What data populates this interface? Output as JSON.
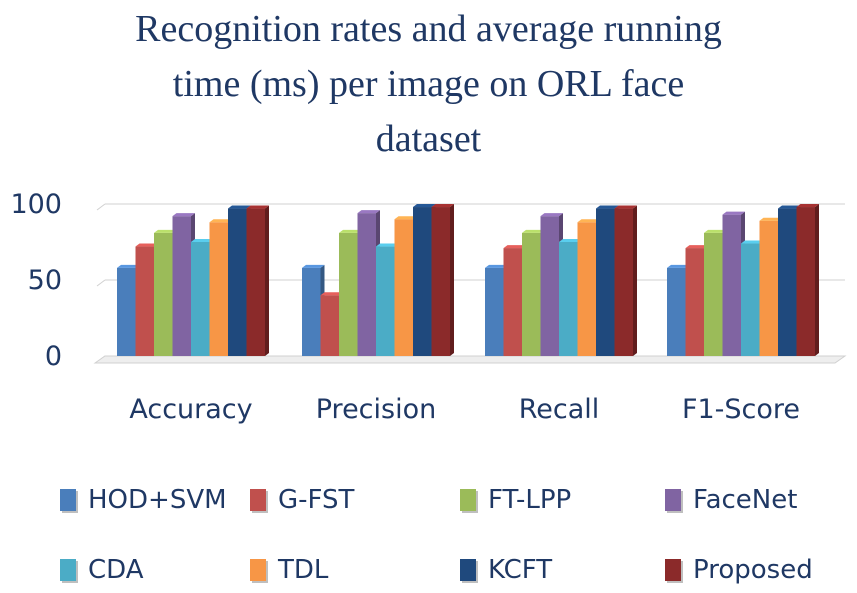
{
  "chart_data": {
    "type": "bar",
    "title": "Recognition rates and average running time (ms) per image on ORL face dataset",
    "title_lines": [
      "Recognition rates and average running",
      "time (ms) per image on ORL face",
      "dataset"
    ],
    "categories": [
      "Accuracy",
      "Precision",
      "Recall",
      "F1-Score"
    ],
    "ylim": [
      0,
      100
    ],
    "yticks": [
      0,
      50,
      100
    ],
    "grid": true,
    "legend_position": "bottom",
    "series": [
      {
        "name": "HOD+SVM",
        "color": "#4a7ebb",
        "values": [
          58,
          58,
          58,
          58
        ]
      },
      {
        "name": "G-FST",
        "color": "#c0504d",
        "values": [
          72,
          40,
          71,
          71
        ]
      },
      {
        "name": "FT-LPP",
        "color": "#9bbb59",
        "values": [
          81,
          81,
          81,
          81
        ]
      },
      {
        "name": "FaceNet",
        "color": "#8064a2",
        "values": [
          92,
          94,
          92,
          93
        ]
      },
      {
        "name": "CDA",
        "color": "#4bacc6",
        "values": [
          75,
          72,
          75,
          74
        ]
      },
      {
        "name": "TDL",
        "color": "#f79646",
        "values": [
          88,
          90,
          88,
          89
        ]
      },
      {
        "name": "KCFT",
        "color": "#1f497d",
        "values": [
          97,
          98,
          97,
          97
        ]
      },
      {
        "name": "Proposed",
        "color": "#8b2a2a",
        "values": [
          97,
          98,
          97,
          98
        ]
      }
    ]
  }
}
